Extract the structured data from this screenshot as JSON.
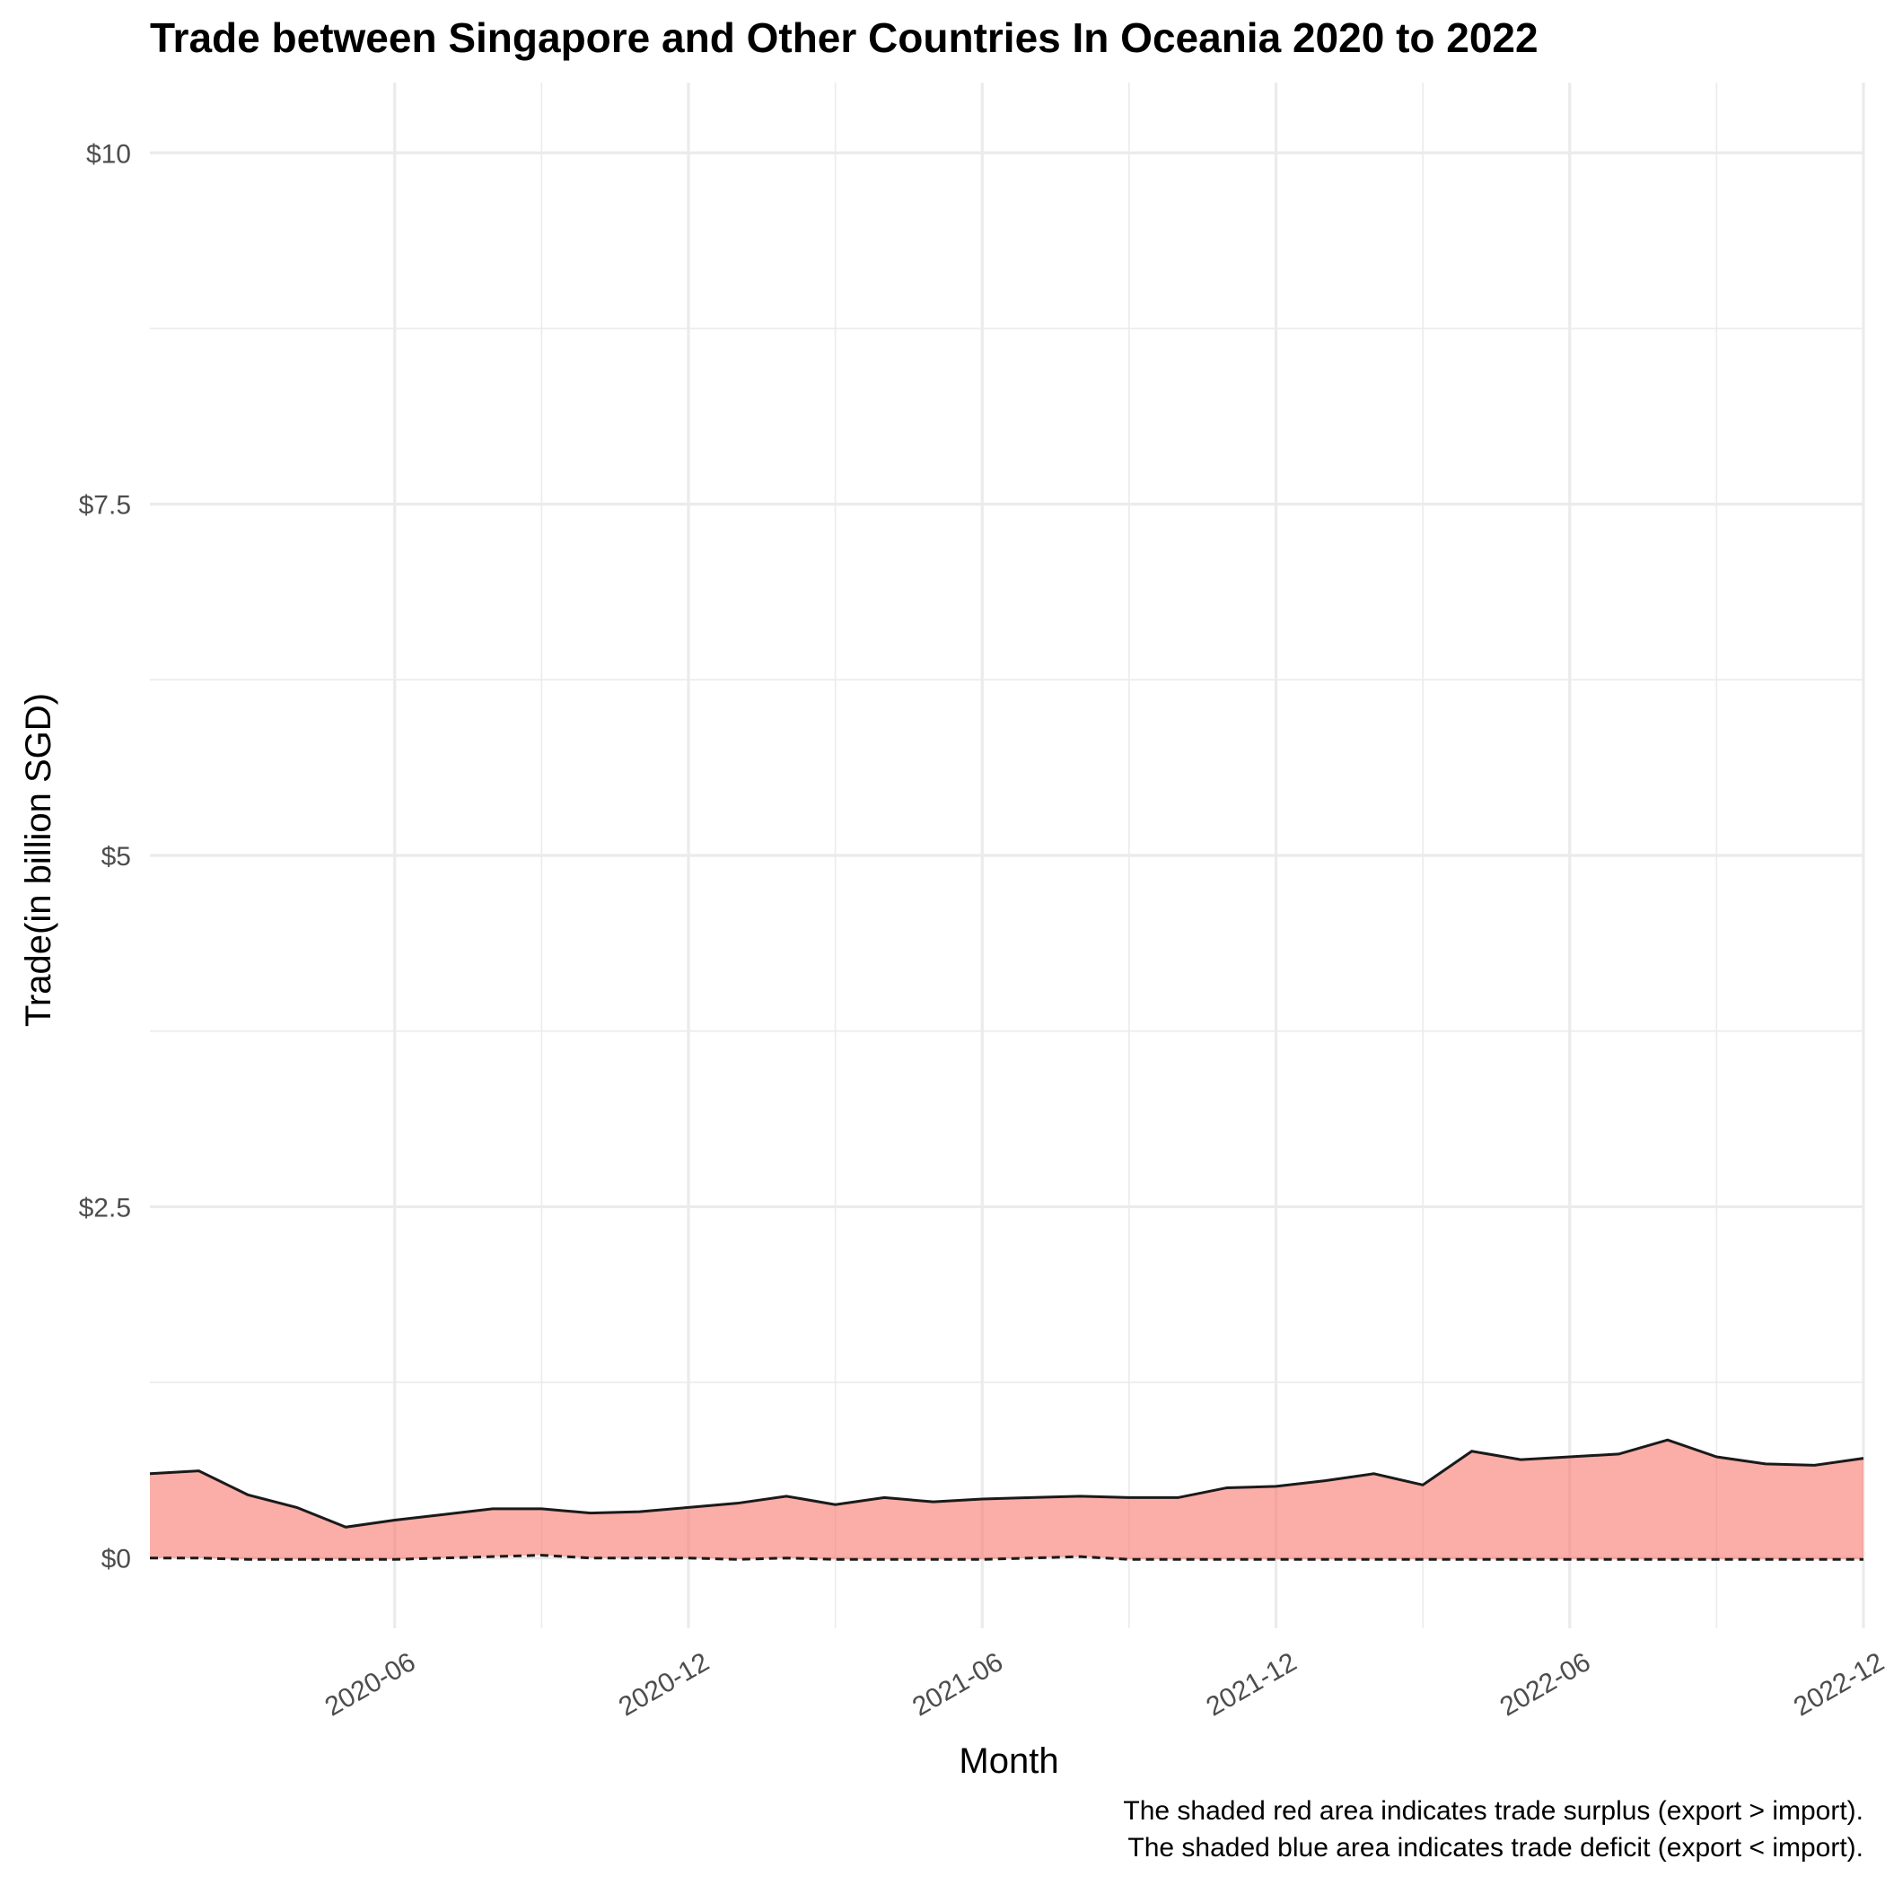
{
  "chart_data": {
    "type": "area",
    "title": "Trade between Singapore and Other Countries In Oceania  2020 to 2022",
    "xlabel": "Month",
    "ylabel": "Trade(in billion SGD)",
    "ylim": [
      -0.5,
      10.5
    ],
    "xlim": [
      "2020-01",
      "2022-12"
    ],
    "y_ticks": [
      0,
      2.5,
      5,
      7.5,
      10
    ],
    "y_tick_labels": [
      "$0",
      "$2.5",
      "$5",
      "$7.5",
      "$10"
    ],
    "x_ticks": [
      "2020-06",
      "2020-12",
      "2021-06",
      "2021-12",
      "2022-06",
      "2022-12"
    ],
    "x_tick_labels": [
      "2020-06",
      "2020-12",
      "2021-06",
      "2021-12",
      "2022-06",
      "2022-12"
    ],
    "grid": true,
    "legend": "none",
    "captions": [
      "The shaded red area indicates trade surplus (export > import).",
      "The shaded blue area indicates trade deficit (export < import)."
    ],
    "colors": {
      "surplus": "#f8766d",
      "deficit": "#00bfc4",
      "line": "#1a1a1a",
      "grid": "#ebebeb"
    },
    "months": [
      "2020-01",
      "2020-02",
      "2020-03",
      "2020-04",
      "2020-05",
      "2020-06",
      "2020-07",
      "2020-08",
      "2020-09",
      "2020-10",
      "2020-11",
      "2020-12",
      "2021-01",
      "2021-02",
      "2021-03",
      "2021-04",
      "2021-05",
      "2021-06",
      "2021-07",
      "2021-08",
      "2021-09",
      "2021-10",
      "2021-11",
      "2021-12",
      "2022-01",
      "2022-02",
      "2022-03",
      "2022-04",
      "2022-05",
      "2022-06",
      "2022-07",
      "2022-08",
      "2022-09",
      "2022-10",
      "2022-11",
      "2022-12"
    ],
    "series": [
      {
        "values": [
          0.6,
          0.62,
          0.45,
          0.36,
          0.22,
          0.27,
          0.31,
          0.35,
          0.35,
          0.32,
          0.33,
          0.36,
          0.39,
          0.44,
          0.38,
          0.43,
          0.4,
          0.42,
          0.43,
          0.44,
          0.43,
          0.43,
          0.5,
          0.51,
          0.55,
          0.6,
          0.52,
          0.76,
          0.7,
          0.72,
          0.74,
          0.84,
          0.72,
          0.67,
          0.66,
          0.71
        ]
      },
      {
        "values": [
          0.0,
          0.0,
          -0.01,
          -0.01,
          -0.01,
          -0.01,
          0.0,
          0.01,
          0.02,
          0.0,
          0.0,
          0.0,
          -0.01,
          0.0,
          -0.01,
          -0.01,
          -0.01,
          -0.01,
          0.0,
          0.01,
          -0.01,
          -0.01,
          -0.01,
          -0.01,
          -0.01,
          -0.01,
          -0.01,
          -0.01,
          -0.01,
          -0.01,
          -0.01,
          -0.01,
          -0.01,
          -0.01,
          -0.01,
          -0.01
        ]
      }
    ]
  }
}
